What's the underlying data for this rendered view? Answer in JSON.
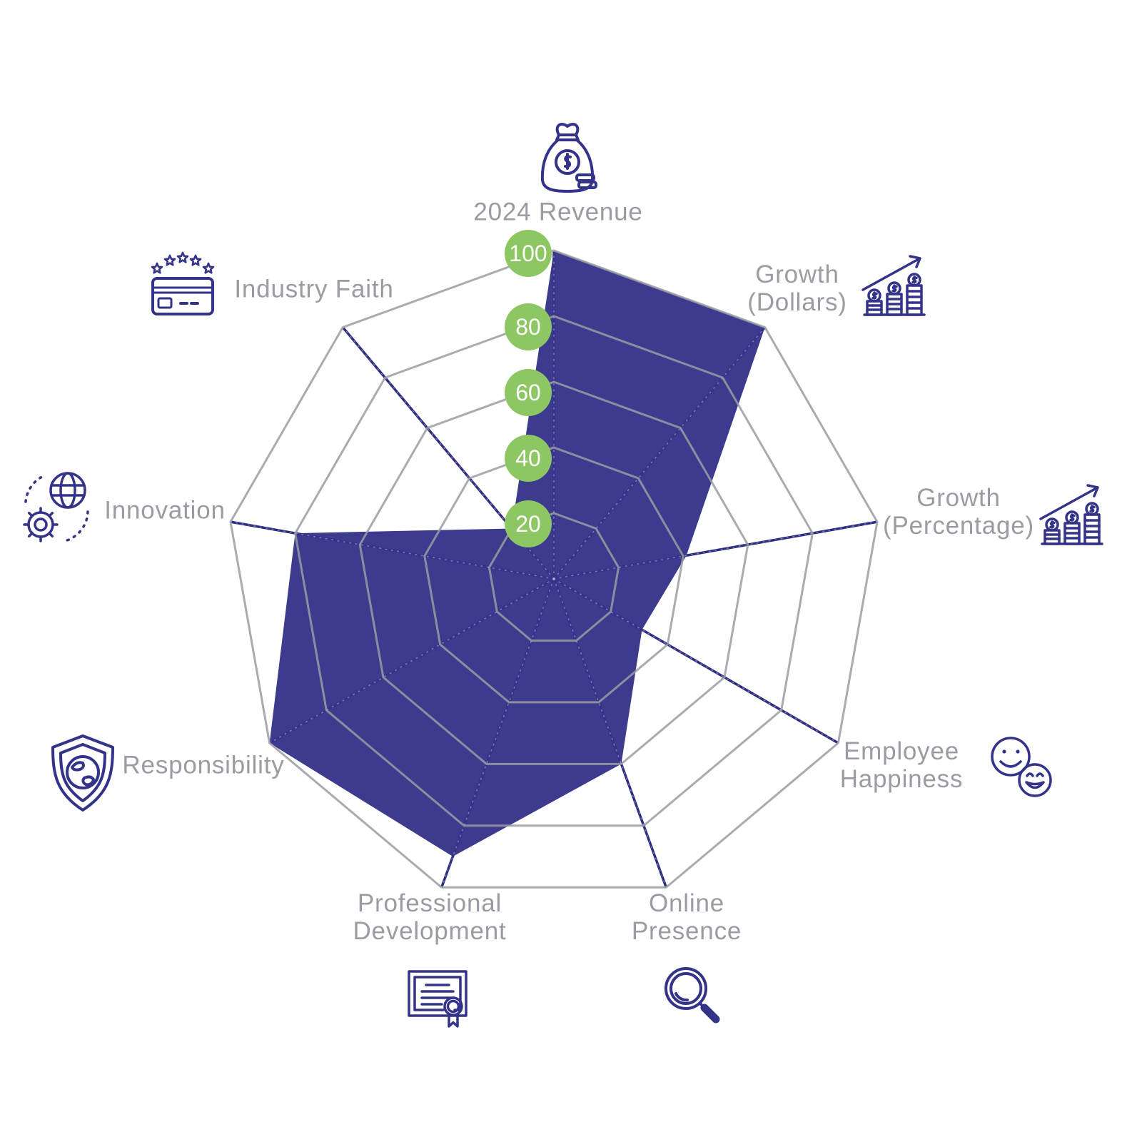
{
  "chart_data": {
    "type": "radar",
    "max": 100,
    "ylim": [
      0,
      100
    ],
    "grid": "on",
    "legend": "none",
    "rings": [
      20,
      40,
      60,
      80,
      100
    ],
    "scale_ticks": [
      100,
      80,
      60,
      40,
      20
    ],
    "axes": [
      {
        "label": "2024 Revenue",
        "lines": [
          "2024 Revenue"
        ],
        "value": 100,
        "icon": "money-bag-icon"
      },
      {
        "label": "Growth (Dollars)",
        "lines": [
          "Growth",
          "(Dollars)"
        ],
        "value": 100,
        "icon": "coin-growth-arrow-icon"
      },
      {
        "label": "Growth (Percentage)",
        "lines": [
          "Growth",
          "(Percentage)"
        ],
        "value": 41,
        "icon": "coin-growth-arrow-icon"
      },
      {
        "label": "Employee Happiness",
        "lines": [
          "Employee",
          "Happiness"
        ],
        "value": 31,
        "icon": "smiley-faces-icon"
      },
      {
        "label": "Online Presence",
        "lines": [
          "Online",
          "Presence"
        ],
        "value": 60,
        "icon": "magnifier-icon"
      },
      {
        "label": "Professional Development",
        "lines": [
          "Professional",
          "Development"
        ],
        "value": 90,
        "icon": "certificate-icon"
      },
      {
        "label": "Responsibility",
        "lines": [
          "Responsibility"
        ],
        "value": 100,
        "icon": "shield-globe-icon"
      },
      {
        "label": "Innovation",
        "lines": [
          "Innovation"
        ],
        "value": 80,
        "icon": "globe-gear-icon"
      },
      {
        "label": "Industry Faith",
        "lines": [
          "Industry Faith"
        ],
        "value": 20,
        "icon": "credit-card-stars-icon"
      }
    ],
    "colors": {
      "fill": "#36358a",
      "axis_line": "#2d2c80",
      "grid": "#9b9ca4",
      "spoke_dots": "rgba(190,192,208,0.5)",
      "badge": "#8dc763",
      "badge_text": "#ffffff",
      "label": "#9b9ba3",
      "icon": "#33338a",
      "background": "#ffffff"
    }
  }
}
